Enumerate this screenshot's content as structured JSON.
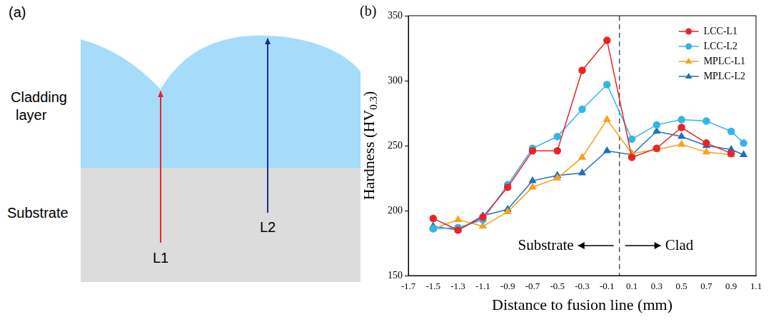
{
  "diagram": {
    "label": "(a)",
    "regions": [
      "Cladding layer",
      "Substrate"
    ],
    "paths": [
      {
        "label": "L1",
        "color": "#e8262a"
      },
      {
        "label": "L2",
        "color": "#1c2e8c"
      }
    ]
  },
  "chart_data": {
    "type": "line",
    "panel_label": "(b)",
    "x_label": "Distance to fusion line (mm)",
    "y_label": {
      "text": "Hardness (HV",
      "subscript": "0.3",
      "after": ")"
    },
    "xlim": [
      -1.7,
      1.1
    ],
    "xticks": [
      -1.7,
      -1.5,
      -1.3,
      -1.1,
      -0.9,
      -0.7,
      -0.5,
      -0.3,
      -0.1,
      0.1,
      0.3,
      0.5,
      0.7,
      0.9,
      1.1
    ],
    "ylim": [
      150,
      350
    ],
    "yticks": [
      150,
      200,
      250,
      300,
      350
    ],
    "grid": false,
    "legend": "upper right",
    "fusion_line": {
      "x": 0,
      "line_style": "dashed"
    },
    "annotations": [
      {
        "text": "Substrate",
        "arrow": "left"
      },
      {
        "text": "Clad",
        "arrow": "right"
      }
    ],
    "series": [
      {
        "name": "LCC-L1",
        "color": "#e8262a",
        "marker": "circle",
        "x": [
          -1.5,
          -1.3,
          -1.1,
          -0.9,
          -0.7,
          -0.5,
          -0.3,
          -0.1,
          0.1,
          0.3,
          0.5,
          0.7,
          0.9
        ],
        "values": [
          194,
          185,
          195,
          218,
          246,
          246,
          308,
          331,
          241,
          248,
          264,
          252,
          244
        ]
      },
      {
        "name": "LCC-L2",
        "color": "#33b5e8",
        "marker": "circle",
        "x": [
          -1.5,
          -1.3,
          -1.1,
          -0.9,
          -0.7,
          -0.5,
          -0.3,
          -0.1,
          0.1,
          0.3,
          0.5,
          0.7,
          0.9,
          1.0
        ],
        "values": [
          186,
          187,
          193,
          220,
          248,
          257,
          278,
          297,
          255,
          266,
          270,
          269,
          261,
          252
        ]
      },
      {
        "name": "MPLC-L1",
        "color": "#f7a21b",
        "marker": "triangle",
        "x": [
          -1.5,
          -1.3,
          -1.1,
          -0.9,
          -0.7,
          -0.5,
          -0.3,
          -0.1,
          0.1,
          0.3,
          0.5,
          0.7,
          0.9
        ],
        "values": [
          186,
          193,
          188,
          199,
          218,
          225,
          241,
          270,
          244,
          247,
          251,
          245,
          243
        ]
      },
      {
        "name": "MPLC-L2",
        "color": "#1f6fc0",
        "marker": "triangle",
        "x": [
          -1.5,
          -1.3,
          -1.1,
          -0.9,
          -0.7,
          -0.5,
          -0.3,
          -0.1,
          0.1,
          0.3,
          0.5,
          0.7,
          0.9,
          1.0
        ],
        "values": [
          188,
          185,
          196,
          201,
          223,
          227,
          229,
          246,
          243,
          261,
          257,
          250,
          247,
          243
        ]
      }
    ]
  }
}
